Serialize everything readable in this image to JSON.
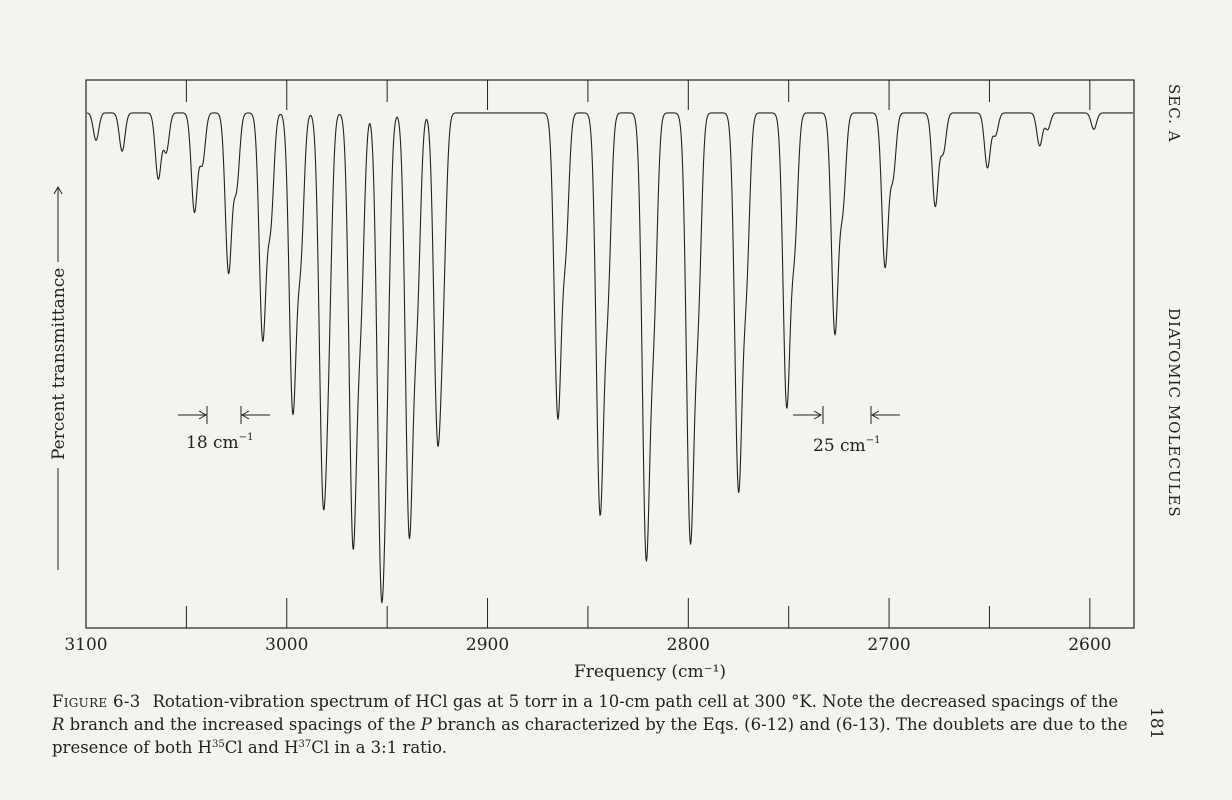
{
  "running_head": {
    "section": "SEC. A",
    "chapter": "DIATOMIC MOLECULES"
  },
  "page_number": "181",
  "annotations": {
    "left_spacing": "18 cm",
    "right_spacing": "25 cm",
    "superscript": "−1"
  },
  "caption": {
    "label": "Figure 6-3",
    "line1": "Rotation-vibration spectrum of HCl gas at 5 torr in a 10-cm path cell at 300 °K.  Note the decreased spacings of the",
    "line2_r": "R",
    "line2_mid": " branch and the increased spacings of the ",
    "line2_p": "P",
    "line2_end": " branch as characterized by the Eqs. (6-12) and (6-13).  The doublets are due to the",
    "line3_a": "presence of both H",
    "iso1": "35",
    "line3_b": "Cl and H",
    "iso2": "37",
    "line3_c": "Cl in a 3:1 ratio."
  },
  "chart_data": {
    "type": "line",
    "xlabel": "Frequency (cm⁻¹)",
    "ylabel": "Percent transmittance",
    "x_ticks": [
      "3100",
      "3000",
      "2900",
      "2800",
      "2700",
      "2600"
    ],
    "xlim": [
      3100,
      2578
    ],
    "ylim": [
      0,
      100
    ],
    "baseline_transmittance": 94,
    "series": [
      {
        "absorption_lines": [
          {
            "x": 3095,
            "depth": 5
          },
          {
            "x": 3082,
            "depth": 7
          },
          {
            "x": 3064,
            "depth": 12
          },
          {
            "x": 3060,
            "depth": 7
          },
          {
            "x": 3046,
            "depth": 18
          },
          {
            "x": 3042,
            "depth": 9
          },
          {
            "x": 3029,
            "depth": 29
          },
          {
            "x": 3025,
            "depth": 13
          },
          {
            "x": 3012,
            "depth": 41
          },
          {
            "x": 3008,
            "depth": 19
          },
          {
            "x": 2997,
            "depth": 54
          },
          {
            "x": 2993,
            "depth": 24
          },
          {
            "x": 2982,
            "depth": 66
          },
          {
            "x": 2979,
            "depth": 29
          },
          {
            "x": 2967,
            "depth": 78
          },
          {
            "x": 2963,
            "depth": 31
          },
          {
            "x": 2953,
            "depth": 82
          },
          {
            "x": 2950,
            "depth": 32
          },
          {
            "x": 2939,
            "depth": 76
          },
          {
            "x": 2935,
            "depth": 31
          },
          {
            "x": 2925,
            "depth": 56
          },
          {
            "x": 2922,
            "depth": 24
          },
          {
            "x": 2865,
            "depth": 55
          },
          {
            "x": 2861,
            "depth": 22
          },
          {
            "x": 2844,
            "depth": 72
          },
          {
            "x": 2840,
            "depth": 29
          },
          {
            "x": 2821,
            "depth": 80
          },
          {
            "x": 2817,
            "depth": 32
          },
          {
            "x": 2799,
            "depth": 77
          },
          {
            "x": 2795,
            "depth": 31
          },
          {
            "x": 2775,
            "depth": 68
          },
          {
            "x": 2771,
            "depth": 27
          },
          {
            "x": 2751,
            "depth": 53
          },
          {
            "x": 2747,
            "depth": 22
          },
          {
            "x": 2727,
            "depth": 40
          },
          {
            "x": 2723,
            "depth": 16
          },
          {
            "x": 2702,
            "depth": 28
          },
          {
            "x": 2698,
            "depth": 11
          },
          {
            "x": 2677,
            "depth": 17
          },
          {
            "x": 2673,
            "depth": 7
          },
          {
            "x": 2651,
            "depth": 10
          },
          {
            "x": 2647,
            "depth": 4
          },
          {
            "x": 2625,
            "depth": 6
          },
          {
            "x": 2621,
            "depth": 3
          },
          {
            "x": 2598,
            "depth": 3
          }
        ]
      }
    ]
  }
}
